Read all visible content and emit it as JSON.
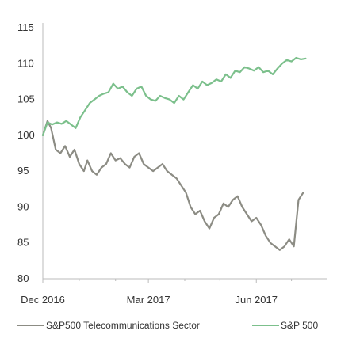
{
  "chart_data": {
    "type": "line",
    "title": "",
    "xlabel": "",
    "ylabel": "",
    "ylim": [
      80,
      115
    ],
    "yticks": [
      80,
      85,
      90,
      95,
      100,
      105,
      110,
      115
    ],
    "x_tick_labels": [
      "Dec 2016",
      "Mar 2017",
      "Jun 2017"
    ],
    "x_start": "2016-12-01",
    "x_end": "2017-07-31",
    "x_ticks": [
      "2016-12-01",
      "2017-03-01",
      "2017-06-01"
    ],
    "legend_position": "bottom",
    "grid": false,
    "series": [
      {
        "name": "S&P500 Telecommunications Sector",
        "color": "#8c8c84",
        "points": [
          [
            "2016-12-01",
            100.0
          ],
          [
            "2016-12-05",
            102.0
          ],
          [
            "2016-12-08",
            101.0
          ],
          [
            "2016-12-12",
            98.0
          ],
          [
            "2016-12-16",
            97.5
          ],
          [
            "2016-12-20",
            98.5
          ],
          [
            "2016-12-24",
            97.0
          ],
          [
            "2016-12-28",
            98.0
          ],
          [
            "2017-01-01",
            96.0
          ],
          [
            "2017-01-05",
            95.0
          ],
          [
            "2017-01-08",
            96.5
          ],
          [
            "2017-01-12",
            95.0
          ],
          [
            "2017-01-16",
            94.5
          ],
          [
            "2017-01-20",
            95.5
          ],
          [
            "2017-01-24",
            96.0
          ],
          [
            "2017-01-28",
            97.5
          ],
          [
            "2017-02-01",
            96.5
          ],
          [
            "2017-02-05",
            96.8
          ],
          [
            "2017-02-09",
            96.0
          ],
          [
            "2017-02-13",
            95.5
          ],
          [
            "2017-02-17",
            97.0
          ],
          [
            "2017-02-21",
            97.5
          ],
          [
            "2017-02-25",
            96.0
          ],
          [
            "2017-03-01",
            95.5
          ],
          [
            "2017-03-05",
            95.0
          ],
          [
            "2017-03-09",
            95.5
          ],
          [
            "2017-03-13",
            96.0
          ],
          [
            "2017-03-17",
            95.0
          ],
          [
            "2017-03-21",
            94.5
          ],
          [
            "2017-03-25",
            94.0
          ],
          [
            "2017-03-29",
            93.0
          ],
          [
            "2017-04-02",
            92.0
          ],
          [
            "2017-04-06",
            90.0
          ],
          [
            "2017-04-10",
            89.0
          ],
          [
            "2017-04-14",
            89.5
          ],
          [
            "2017-04-18",
            88.0
          ],
          [
            "2017-04-22",
            87.0
          ],
          [
            "2017-04-26",
            88.5
          ],
          [
            "2017-04-30",
            89.0
          ],
          [
            "2017-05-04",
            90.5
          ],
          [
            "2017-05-08",
            90.0
          ],
          [
            "2017-05-12",
            91.0
          ],
          [
            "2017-05-16",
            91.5
          ],
          [
            "2017-05-20",
            90.0
          ],
          [
            "2017-05-24",
            89.0
          ],
          [
            "2017-05-28",
            88.0
          ],
          [
            "2017-06-01",
            88.5
          ],
          [
            "2017-06-05",
            87.5
          ],
          [
            "2017-06-09",
            86.0
          ],
          [
            "2017-06-13",
            85.0
          ],
          [
            "2017-06-17",
            84.5
          ],
          [
            "2017-06-21",
            84.0
          ],
          [
            "2017-06-25",
            84.5
          ],
          [
            "2017-06-29",
            85.5
          ],
          [
            "2017-07-03",
            84.5
          ],
          [
            "2017-07-07",
            91.0
          ],
          [
            "2017-07-11",
            92.0
          ]
        ]
      },
      {
        "name": "S&P 500",
        "color": "#7cc08c",
        "points": [
          [
            "2016-12-01",
            100.0
          ],
          [
            "2016-12-05",
            101.8
          ],
          [
            "2016-12-09",
            101.5
          ],
          [
            "2016-12-13",
            101.8
          ],
          [
            "2016-12-17",
            101.6
          ],
          [
            "2016-12-21",
            102.0
          ],
          [
            "2016-12-25",
            101.5
          ],
          [
            "2016-12-29",
            101.0
          ],
          [
            "2017-01-02",
            102.5
          ],
          [
            "2017-01-06",
            103.5
          ],
          [
            "2017-01-10",
            104.5
          ],
          [
            "2017-01-14",
            105.0
          ],
          [
            "2017-01-18",
            105.5
          ],
          [
            "2017-01-22",
            105.8
          ],
          [
            "2017-01-26",
            106.0
          ],
          [
            "2017-01-30",
            107.2
          ],
          [
            "2017-02-03",
            106.5
          ],
          [
            "2017-02-07",
            106.8
          ],
          [
            "2017-02-11",
            106.0
          ],
          [
            "2017-02-15",
            105.5
          ],
          [
            "2017-02-19",
            106.5
          ],
          [
            "2017-02-23",
            106.8
          ],
          [
            "2017-02-27",
            105.5
          ],
          [
            "2017-03-03",
            105.0
          ],
          [
            "2017-03-07",
            104.8
          ],
          [
            "2017-03-11",
            105.5
          ],
          [
            "2017-03-15",
            105.2
          ],
          [
            "2017-03-19",
            105.0
          ],
          [
            "2017-03-23",
            104.5
          ],
          [
            "2017-03-27",
            105.5
          ],
          [
            "2017-03-31",
            105.0
          ],
          [
            "2017-04-04",
            106.0
          ],
          [
            "2017-04-08",
            107.0
          ],
          [
            "2017-04-12",
            106.5
          ],
          [
            "2017-04-16",
            107.5
          ],
          [
            "2017-04-20",
            107.0
          ],
          [
            "2017-04-24",
            107.3
          ],
          [
            "2017-04-28",
            107.8
          ],
          [
            "2017-05-02",
            107.5
          ],
          [
            "2017-05-06",
            108.5
          ],
          [
            "2017-05-10",
            108.0
          ],
          [
            "2017-05-14",
            109.0
          ],
          [
            "2017-05-18",
            108.8
          ],
          [
            "2017-05-22",
            109.5
          ],
          [
            "2017-05-26",
            109.3
          ],
          [
            "2017-05-30",
            109.0
          ],
          [
            "2017-06-03",
            109.5
          ],
          [
            "2017-06-07",
            108.8
          ],
          [
            "2017-06-11",
            109.0
          ],
          [
            "2017-06-15",
            108.5
          ],
          [
            "2017-06-19",
            109.3
          ],
          [
            "2017-06-23",
            110.0
          ],
          [
            "2017-06-27",
            110.5
          ],
          [
            "2017-07-01",
            110.3
          ],
          [
            "2017-07-05",
            110.8
          ],
          [
            "2017-07-09",
            110.6
          ],
          [
            "2017-07-13",
            110.7
          ]
        ]
      }
    ]
  }
}
